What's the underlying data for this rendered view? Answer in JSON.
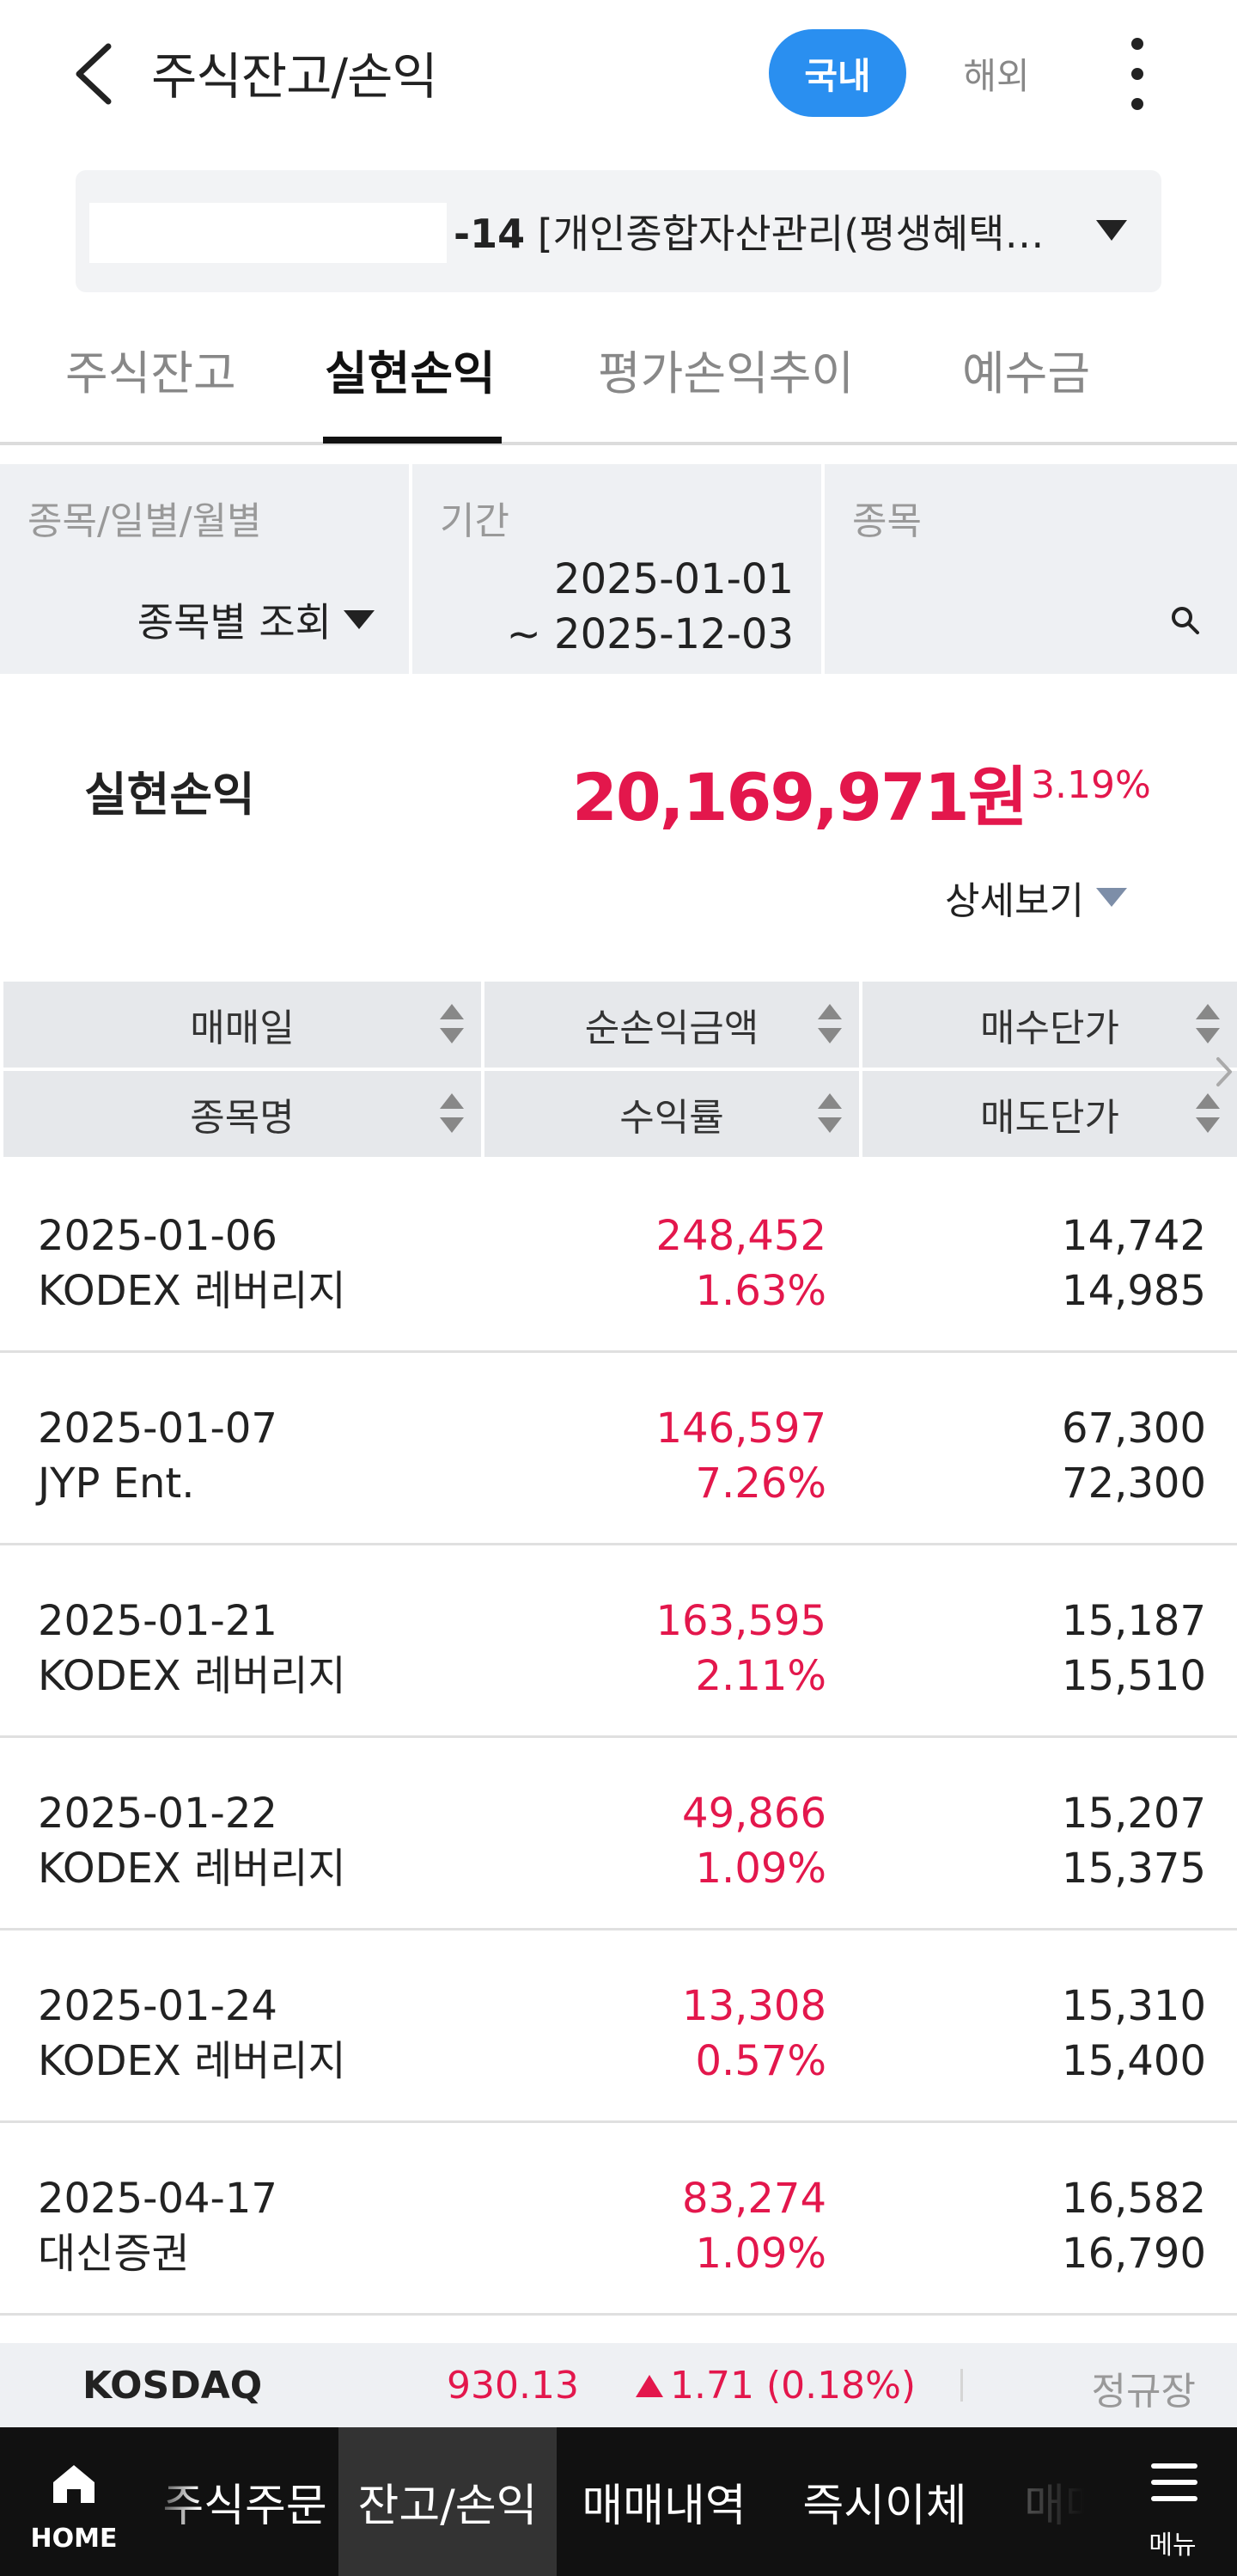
{
  "header": {
    "title": "주식잔고/손익",
    "tab_domestic": "국내",
    "tab_overseas": "해외"
  },
  "account": {
    "suffix": "-14",
    "name": "[개인종합자산관리(평생혜택…"
  },
  "subtabs": [
    "주식잔고",
    "실현손익",
    "평가손익추이",
    "예수금"
  ],
  "filter": {
    "type_label": "종목/일별/월별",
    "type_value": "종목별 조회",
    "period_label": "기간",
    "period_from": "2025-01-01",
    "period_to": "~ 2025-12-03",
    "stock_label": "종목"
  },
  "summary": {
    "label": "실현손익",
    "value": "20,169,971원",
    "rate": "3.19%",
    "detail": "상세보기"
  },
  "table": {
    "headers_top": [
      "매매일",
      "순손익금액",
      "매수단가"
    ],
    "headers_bottom": [
      "종목명",
      "수익률",
      "매도단가"
    ],
    "rows": [
      {
        "date": "2025-01-06",
        "name": "KODEX 레버리지",
        "profit": "248,452",
        "rate": "1.63%",
        "buy": "14,742",
        "sell": "14,985"
      },
      {
        "date": "2025-01-07",
        "name": "JYP Ent.",
        "profit": "146,597",
        "rate": "7.26%",
        "buy": "67,300",
        "sell": "72,300"
      },
      {
        "date": "2025-01-21",
        "name": "KODEX 레버리지",
        "profit": "163,595",
        "rate": "2.11%",
        "buy": "15,187",
        "sell": "15,510"
      },
      {
        "date": "2025-01-22",
        "name": "KODEX 레버리지",
        "profit": "49,866",
        "rate": "1.09%",
        "buy": "15,207",
        "sell": "15,375"
      },
      {
        "date": "2025-01-24",
        "name": "KODEX 레버리지",
        "profit": "13,308",
        "rate": "0.57%",
        "buy": "15,310",
        "sell": "15,400"
      },
      {
        "date": "2025-04-17",
        "name": "대신증권",
        "profit": "83,274",
        "rate": "1.09%",
        "buy": "16,582",
        "sell": "16,790"
      }
    ]
  },
  "ticker": {
    "name": "KOSDAQ",
    "value": "930.13",
    "change": "1.71 (0.18%)",
    "session": "정규장"
  },
  "bottom_nav": {
    "home": "HOME",
    "items": [
      "주식주문",
      "잔고/손익",
      "매매내역",
      "즉시이체",
      "매매"
    ],
    "menu": "메뉴"
  },
  "colors": {
    "accent": "#2a8ff0",
    "profit": "#e3174c"
  }
}
